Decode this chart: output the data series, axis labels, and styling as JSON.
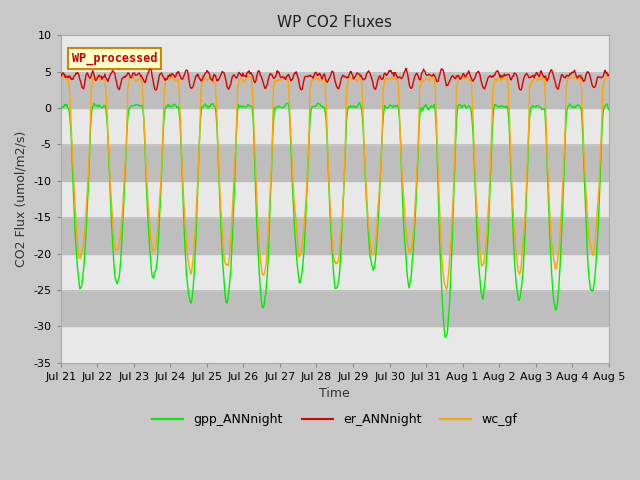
{
  "title": "WP CO2 Fluxes",
  "xlabel": "Time",
  "ylabel": "CO2 Flux (umol/m2/s)",
  "ylim": [
    -35,
    10
  ],
  "n_days": 15,
  "pts_per_day": 48,
  "annotation_text": "WP_processed",
  "annotation_color": "#CC0000",
  "annotation_bg": "#FFFFCC",
  "annotation_edge": "#CC8800",
  "fig_bg_color": "#C8C8C8",
  "plot_bg_color": "#DCDCDC",
  "band_color": "#BEBEBE",
  "band_white": "#E8E8E8",
  "line_colors": {
    "gpp": "#00EE00",
    "er": "#DD0000",
    "wc": "#FFA500"
  },
  "line_widths": {
    "gpp": 1.0,
    "er": 1.0,
    "wc": 1.0
  },
  "legend_labels": [
    "gpp_ANNnight",
    "er_ANNnight",
    "wc_gf"
  ],
  "xtick_labels": [
    "Jul 21",
    "Jul 22",
    "Jul 23",
    "Jul 24",
    "Jul 25",
    "Jul 26",
    "Jul 27",
    "Jul 28",
    "Jul 29",
    "Jul 30",
    "Jul 31",
    "Aug 1",
    "Aug 2",
    "Aug 3",
    "Aug 4",
    "Aug 5"
  ],
  "title_fontsize": 11,
  "axis_label_fontsize": 9,
  "tick_fontsize": 8,
  "legend_fontsize": 9
}
